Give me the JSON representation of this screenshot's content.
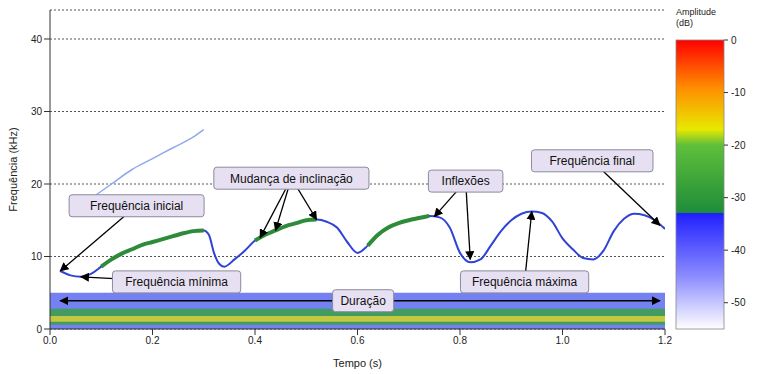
{
  "chart_data": {
    "type": "spectrogram",
    "x_label": "Tempo (s)",
    "y_label": "Frequência (kHz)",
    "xlim": [
      0,
      1.2
    ],
    "xticks": [
      {
        "value": 0,
        "label": "0.0"
      },
      0.2,
      0.4,
      0.6,
      0.8,
      {
        "value": 1,
        "label": "1.0"
      },
      1.2
    ],
    "ylim": [
      0,
      44
    ],
    "yticks": [
      0,
      10,
      20,
      30,
      40
    ],
    "grid": true,
    "series": [
      {
        "type": "line",
        "color": "#8fa8ee",
        "x": [
          0.08,
          0.12,
          0.16,
          0.2,
          0.24,
          0.28,
          0.3
        ],
        "values": [
          18,
          20,
          22,
          23.5,
          25,
          26.5,
          27.5
        ]
      },
      {
        "type": "line",
        "color": "#2f43d6",
        "x": [
          0.02,
          0.04,
          0.06,
          0.08,
          0.1,
          0.12,
          0.14,
          0.16,
          0.18,
          0.2,
          0.22,
          0.24,
          0.26,
          0.28,
          0.3,
          0.31,
          0.32,
          0.33,
          0.34,
          0.36,
          0.38,
          0.4,
          0.42,
          0.44,
          0.46,
          0.48,
          0.5,
          0.52,
          0.54,
          0.56,
          0.58,
          0.6,
          0.62,
          0.64,
          0.66,
          0.68,
          0.7,
          0.72,
          0.74,
          0.76,
          0.78,
          0.8,
          0.82,
          0.84,
          0.86,
          0.88,
          0.9,
          0.92,
          0.94,
          0.96,
          0.98,
          1,
          1.02,
          1.04,
          1.06,
          1.08,
          1.1,
          1.12,
          1.14,
          1.16,
          1.18,
          1.2
        ],
        "values": [
          8.0,
          7.4,
          7.2,
          7.6,
          8.6,
          9.6,
          10.4,
          11.0,
          11.6,
          12.0,
          12.4,
          12.8,
          13.2,
          13.5,
          13.6,
          13.0,
          10.5,
          9.0,
          8.6,
          9.6,
          10.8,
          12.2,
          13.0,
          13.6,
          14.2,
          14.6,
          15.0,
          15.1,
          14.8,
          14.0,
          12.0,
          10.5,
          11.5,
          13.0,
          14.0,
          14.6,
          15.0,
          15.3,
          15.6,
          15.4,
          14.0,
          10.5,
          9.2,
          9.6,
          11.5,
          13.5,
          15.0,
          15.9,
          16.2,
          16.0,
          14.8,
          12.5,
          11.0,
          9.8,
          9.6,
          10.8,
          13.5,
          15.2,
          15.9,
          15.7,
          15.0,
          13.8
        ]
      },
      {
        "type": "line",
        "color": "#2e8b3a",
        "x": [
          0.1,
          0.12,
          0.14,
          0.16,
          0.18,
          0.2,
          0.22,
          0.24,
          0.26,
          0.28,
          0.3,
          0.32,
          0.4,
          0.42,
          0.44,
          0.46,
          0.48,
          0.5,
          0.52,
          0.56,
          0.62,
          0.64,
          0.66,
          0.68,
          0.7,
          0.72,
          0.74
        ],
        "values": [
          8.6,
          9.6,
          10.4,
          11.0,
          11.6,
          12.0,
          12.4,
          12.8,
          13.2,
          13.5,
          13.6,
          null,
          12.2,
          13.0,
          13.6,
          14.2,
          14.6,
          15.0,
          15.1,
          null,
          11.5,
          13.0,
          14.0,
          14.6,
          15.0,
          15.3,
          15.6
        ]
      }
    ],
    "noise_bands": [
      {
        "y": [
          0,
          5
        ],
        "color": "#5a6ced"
      },
      {
        "y": [
          0.6,
          2.8
        ],
        "color": "#3aa048"
      },
      {
        "y": [
          1.0,
          1.8
        ],
        "color": "#d8d03a"
      }
    ],
    "annotations": [
      {
        "text": "Frequência inicial",
        "x": 0.169,
        "y": 17.0,
        "arrows": [
          [
            0.02,
            8.0
          ]
        ]
      },
      {
        "text": "Frequência mínima",
        "x": 0.247,
        "y": 6.5,
        "arrows": [
          [
            0.06,
            7.2
          ]
        ]
      },
      {
        "text": "Mudança de inclinação",
        "x": 0.471,
        "y": 20.8,
        "arrows": [
          [
            0.41,
            12.6
          ],
          [
            0.44,
            13.6
          ],
          [
            0.52,
            15.1
          ]
        ]
      },
      {
        "text": "Inflexões",
        "x": 0.811,
        "y": 20.4,
        "arrows": [
          [
            0.75,
            15.5
          ],
          [
            0.82,
            9.6
          ]
        ]
      },
      {
        "text": "Frequência final",
        "x": 1.058,
        "y": 23.2,
        "arrows": [
          [
            1.19,
            14.3
          ]
        ]
      },
      {
        "text": "Frequência máxima",
        "x": 0.926,
        "y": 6.5,
        "arrows": [
          [
            0.94,
            16.2
          ]
        ]
      },
      {
        "text": "Duração",
        "x": 0.611,
        "y": 3.9,
        "arrows": [
          [
            0.02,
            3.9
          ],
          [
            1.19,
            3.9
          ]
        ]
      }
    ],
    "colorbar": {
      "label": "Amplitude (dB)",
      "range": [
        -55,
        0
      ],
      "ticks": [
        0,
        -10,
        -20,
        -30,
        -40,
        -50
      ],
      "stops": [
        {
          "value": 0,
          "color": "#ff0000"
        },
        {
          "value": -9,
          "color": "#ff8c00"
        },
        {
          "value": -17,
          "color": "#e8e800"
        },
        {
          "value": -20,
          "color": "#5fbf3a"
        },
        {
          "value": -33,
          "color": "#1e8c3a"
        },
        {
          "value": -33,
          "color": "#2020ff"
        },
        {
          "value": -45,
          "color": "#8c8cff"
        },
        {
          "value": -55,
          "color": "#ffffff"
        }
      ]
    }
  }
}
